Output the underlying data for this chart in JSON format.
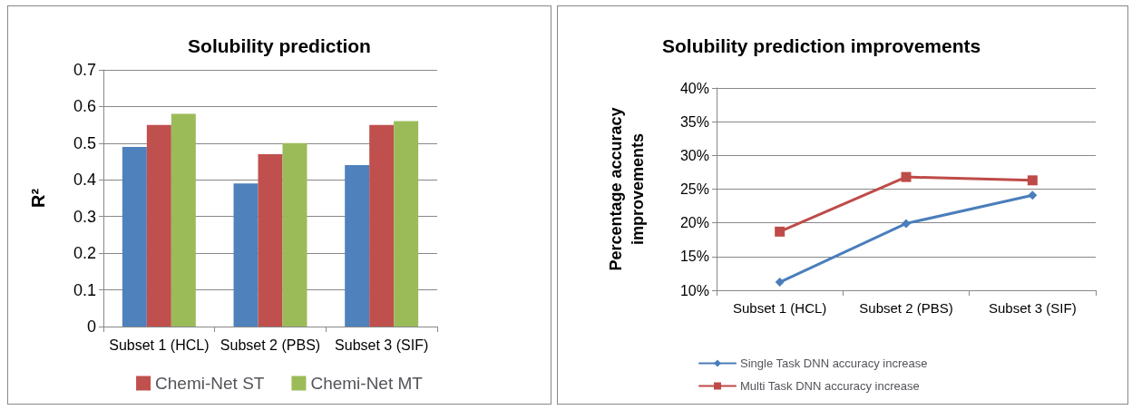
{
  "chart_data": [
    {
      "type": "bar",
      "title": "Solubility prediction",
      "ylabel": "R²",
      "categories": [
        "Subset 1 (HCL)",
        "Subset 2 (PBS)",
        "Subset 3 (SIF)"
      ],
      "series": [
        {
          "color": "#4f81bd",
          "values": [
            0.49,
            0.39,
            0.44
          ]
        },
        {
          "name": "Chemi-Net ST",
          "color": "#c0504d",
          "values": [
            0.55,
            0.47,
            0.55
          ]
        },
        {
          "name": "Chemi-Net MT",
          "color": "#9bbb59",
          "values": [
            0.58,
            0.5,
            0.56
          ]
        }
      ],
      "ylim": [
        0,
        0.7
      ],
      "yticks": [
        0,
        0.1,
        0.2,
        0.3,
        0.4,
        0.5,
        0.6,
        0.7
      ],
      "grid": "y",
      "legend": "bottom"
    },
    {
      "type": "line",
      "title": "Solubility prediction improvements",
      "ylabel": "Percentage accuracy improvements",
      "categories": [
        "Subset 1 (HCL)",
        "Subset 2 (PBS)",
        "Subset 3 (SIF)"
      ],
      "series": [
        {
          "name": "Single Task DNN accuracy increase",
          "color": "#4a7ebb",
          "marker": "diamond",
          "values": [
            11.2,
            19.9,
            24.1
          ]
        },
        {
          "name": "Multi Task DNN accuracy increase",
          "color": "#be4b48",
          "marker": "square",
          "values": [
            18.7,
            26.8,
            26.3
          ]
        }
      ],
      "ylim": [
        10,
        40
      ],
      "yticks": [
        {
          "value": 10,
          "label": "10%"
        },
        {
          "value": 15,
          "label": "15%"
        },
        {
          "value": 20,
          "label": "20%"
        },
        {
          "value": 25,
          "label": "25%"
        },
        {
          "value": 30,
          "label": "30%"
        },
        {
          "value": 35,
          "label": "35%"
        },
        {
          "value": 40,
          "label": "40%"
        }
      ],
      "grid": "y",
      "legend": "bottom left"
    }
  ]
}
